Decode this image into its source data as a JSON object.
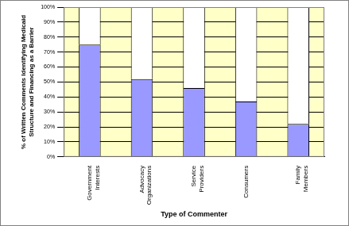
{
  "chart_data": {
    "type": "bar",
    "stacked": true,
    "xlabel": "Type of Commenter",
    "ylabel": "% of Written Comments Identifying Medicaid Structure and Financing as a Barrier",
    "categories": [
      "Government Interests",
      "Advocacy Organizations",
      "Service Providers",
      "Consumers",
      "Family Members"
    ],
    "series": [
      {
        "color": "#9999ff",
        "values": [
          75,
          52,
          46,
          37,
          22
        ]
      },
      {
        "color": "#ffffff",
        "values": [
          25,
          48,
          54,
          63,
          78
        ]
      }
    ],
    "ylim": [
      0,
      100
    ],
    "yticks": [
      {
        "value": 0,
        "label": "0%"
      },
      {
        "value": 10,
        "label": "10%"
      },
      {
        "value": 20,
        "label": "20%"
      },
      {
        "value": 30,
        "label": "30%"
      },
      {
        "value": 40,
        "label": "40%"
      },
      {
        "value": 50,
        "label": "50%"
      },
      {
        "value": 60,
        "label": "60%"
      },
      {
        "value": 70,
        "label": "70%"
      },
      {
        "value": 80,
        "label": "80%"
      },
      {
        "value": 90,
        "label": "90%"
      },
      {
        "value": 100,
        "label": "100%"
      }
    ],
    "grid": true
  }
}
